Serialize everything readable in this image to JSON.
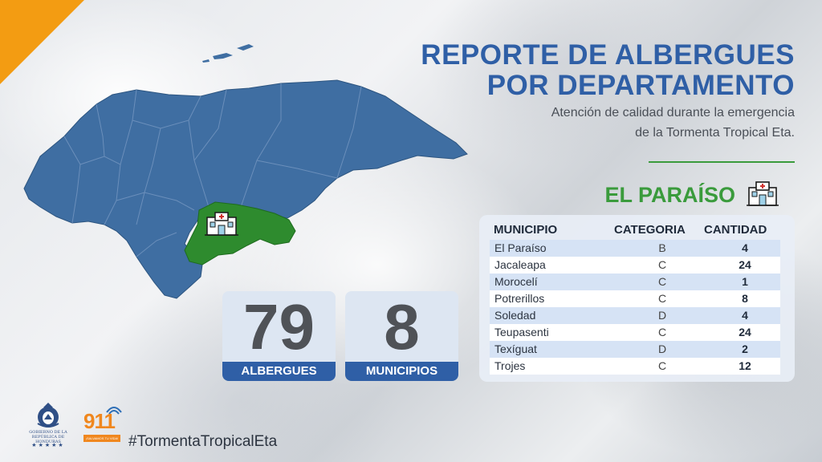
{
  "header": {
    "title_line1": "REPORTE DE ALBERGUES",
    "title_line2": "POR DEPARTAMENTO",
    "subtitle_line1": "Atención de calidad durante la emergencia",
    "subtitle_line2": "de la Tormenta Tropical Eta."
  },
  "department": {
    "name": "EL PARAÍSO",
    "icon": "hospital-icon"
  },
  "colors": {
    "accent_blue": "#2f5fa6",
    "map_blue": "#3f6ea2",
    "highlight_green": "#2e8b2e",
    "corner_orange": "#f39c12"
  },
  "table": {
    "headers": {
      "municipio": "MUNICIPIO",
      "categoria": "CATEGORIA",
      "cantidad": "CANTIDAD"
    },
    "rows": [
      {
        "municipio": "El Paraíso",
        "categoria": "B",
        "cantidad": "4"
      },
      {
        "municipio": "Jacaleapa",
        "categoria": "C",
        "cantidad": "24"
      },
      {
        "municipio": "Morocelí",
        "categoria": "C",
        "cantidad": "1"
      },
      {
        "municipio": "Potrerillos",
        "categoria": "C",
        "cantidad": "8"
      },
      {
        "municipio": "Soledad",
        "categoria": "D",
        "cantidad": "4"
      },
      {
        "municipio": "Teupasenti",
        "categoria": "C",
        "cantidad": "24"
      },
      {
        "municipio": "Texíguat",
        "categoria": "D",
        "cantidad": "2"
      },
      {
        "municipio": "Trojes",
        "categoria": "C",
        "cantidad": "12"
      }
    ]
  },
  "stats": {
    "albergues": {
      "value": "79",
      "label": "ALBERGUES"
    },
    "municipios": {
      "value": "8",
      "label": "MUNICIPIOS"
    }
  },
  "footer": {
    "gov_line1": "GOBIERNO DE LA",
    "gov_line2": "REPÚBLICA DE HONDURAS",
    "logo_911": "911",
    "logo_911_tagline": "¡SALVAMOS TU VIDA!",
    "hashtag": "#TormentaTropicalEta"
  }
}
